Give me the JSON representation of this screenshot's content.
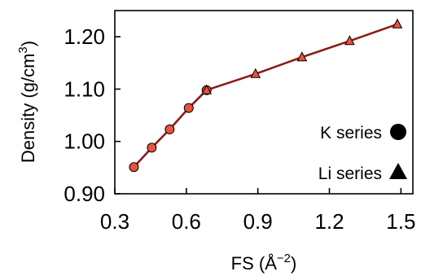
{
  "chart_data": {
    "type": "line",
    "xlabel": "FS (Å",
    "xlabel_exp": "−2",
    "xlabel_end": ")",
    "ylabel": "Density (g/cm",
    "ylabel_exp": "3",
    "ylabel_end": ")",
    "xlim": [
      0.3,
      1.55
    ],
    "ylim": [
      0.9,
      1.25
    ],
    "xticks": [
      0.3,
      0.6,
      0.9,
      1.2,
      1.5
    ],
    "xtick_labels": [
      "0.3",
      "0.6",
      "0.9",
      "1.2",
      "1.5"
    ],
    "yticks": [
      0.9,
      1.0,
      1.1,
      1.2
    ],
    "ytick_labels": [
      "0.90",
      "1.00",
      "1.10",
      "1.20"
    ],
    "grid": false,
    "legend_position": "bottom-right",
    "line_color": "#8B1A1A",
    "marker_fill": "#E8533A",
    "series": [
      {
        "name": "K series",
        "marker": "circle",
        "x": [
          0.38,
          0.455,
          0.53,
          0.61,
          0.685
        ],
        "y": [
          0.951,
          0.988,
          1.023,
          1.064,
          1.098
        ]
      },
      {
        "name": "Li series",
        "marker": "triangle",
        "x": [
          0.685,
          0.89,
          1.085,
          1.285,
          1.485
        ],
        "y": [
          1.098,
          1.129,
          1.161,
          1.192,
          1.224
        ]
      }
    ]
  }
}
